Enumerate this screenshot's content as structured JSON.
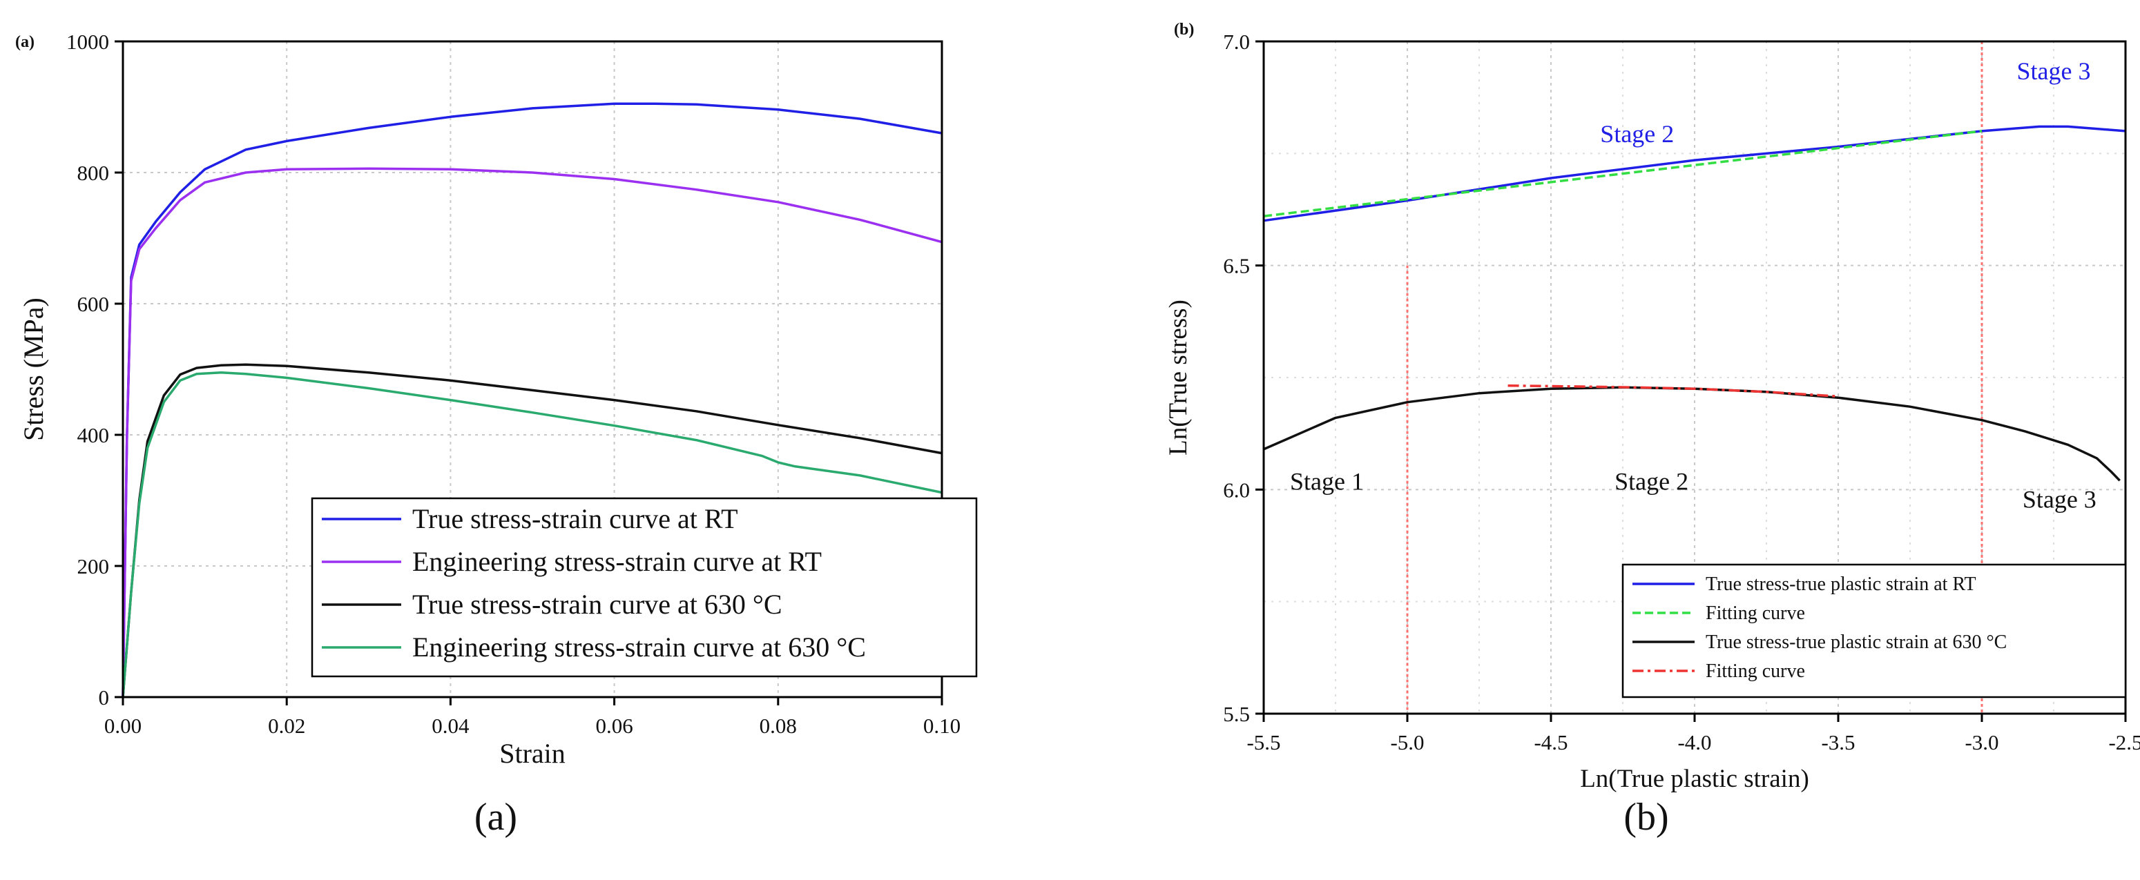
{
  "chart_data": [
    {
      "panel_id": "(a)",
      "caption": "(a)",
      "type": "line",
      "xlabel": "Strain",
      "ylabel": "Stress (MPa)",
      "xlim": [
        0,
        0.1
      ],
      "ylim": [
        0,
        1000
      ],
      "xticks": [
        "0.00",
        "0.02",
        "0.04",
        "0.06",
        "0.08",
        "0.10"
      ],
      "yticks": [
        "0",
        "200",
        "400",
        "600",
        "800",
        "1000"
      ],
      "xtick_values": [
        0,
        0.02,
        0.04,
        0.06,
        0.08,
        0.1
      ],
      "ytick_values": [
        0,
        200,
        400,
        600,
        800,
        1000
      ],
      "grid": true,
      "legend_position": "bottom-right",
      "series": [
        {
          "name": "True stress-strain curve at RT",
          "color": "#1f1fe6",
          "x": [
            0,
            0.0005,
            0.001,
            0.002,
            0.004,
            0.007,
            0.01,
            0.015,
            0.02,
            0.03,
            0.04,
            0.05,
            0.06,
            0.065,
            0.07,
            0.08,
            0.09,
            0.1
          ],
          "y": [
            0,
            400,
            640,
            690,
            725,
            770,
            805,
            835,
            848,
            868,
            885,
            898,
            905,
            905,
            904,
            896,
            882,
            860
          ]
        },
        {
          "name": "Engineering stress-strain curve at RT",
          "color": "#9b30f0",
          "x": [
            0,
            0.0005,
            0.001,
            0.002,
            0.004,
            0.007,
            0.01,
            0.015,
            0.02,
            0.03,
            0.04,
            0.05,
            0.06,
            0.07,
            0.08,
            0.09,
            0.1
          ],
          "y": [
            0,
            400,
            635,
            683,
            715,
            758,
            785,
            800,
            805,
            806,
            805,
            800,
            790,
            774,
            755,
            728,
            694
          ]
        },
        {
          "name": "True stress-strain curve at 630 °C",
          "color": "#111111",
          "x": [
            0,
            0.001,
            0.002,
            0.003,
            0.005,
            0.007,
            0.009,
            0.012,
            0.015,
            0.02,
            0.03,
            0.04,
            0.05,
            0.06,
            0.07,
            0.08,
            0.09,
            0.1
          ],
          "y": [
            0,
            160,
            300,
            390,
            460,
            492,
            502,
            506,
            507,
            505,
            495,
            483,
            468,
            453,
            436,
            415,
            395,
            372
          ]
        },
        {
          "name": "Engineering stress-strain curve at 630 °C",
          "color": "#2aaa6e",
          "x": [
            0,
            0.001,
            0.002,
            0.003,
            0.005,
            0.007,
            0.009,
            0.012,
            0.015,
            0.02,
            0.03,
            0.04,
            0.05,
            0.06,
            0.07,
            0.078,
            0.08,
            0.082,
            0.09,
            0.1
          ],
          "y": [
            0,
            160,
            295,
            380,
            450,
            483,
            493,
            495,
            493,
            487,
            471,
            453,
            434,
            414,
            392,
            368,
            358,
            352,
            338,
            312
          ]
        }
      ]
    },
    {
      "panel_id": "(b)",
      "caption": "(b)",
      "type": "line",
      "xlabel": "Ln(True plastic strain)",
      "ylabel": "Ln(True stress)",
      "xlim": [
        -5.5,
        -2.5
      ],
      "ylim": [
        5.5,
        7.0
      ],
      "xticks": [
        "-5.5",
        "-5.0",
        "-4.5",
        "-4.0",
        "-3.5",
        "-3.0",
        "-2.5"
      ],
      "yticks": [
        "5.5",
        "6.0",
        "6.5",
        "7.0"
      ],
      "xtick_values": [
        -5.5,
        -5.0,
        -4.5,
        -4.0,
        -3.5,
        -3.0,
        -2.5
      ],
      "ytick_values": [
        5.5,
        6.0,
        6.5,
        7.0
      ],
      "grid": true,
      "legend_position": "bottom-right",
      "annotations": [
        {
          "text": "Stage 2",
          "x": -4.2,
          "y": 6.775,
          "color": "#1f1fe6"
        },
        {
          "text": "Stage 3",
          "x": -2.75,
          "y": 6.915,
          "color": "#1f1fe6"
        },
        {
          "text": "Stage 1",
          "x": -5.28,
          "y": 6.0,
          "color": "#111111"
        },
        {
          "text": "Stage 2",
          "x": -4.15,
          "y": 6.0,
          "color": "#111111"
        },
        {
          "text": "Stage 3",
          "x": -2.73,
          "y": 5.96,
          "color": "#111111"
        }
      ],
      "stage_boundaries": [
        {
          "x": -5.0,
          "y_range": [
            5.5,
            6.5
          ]
        },
        {
          "x": -3.0,
          "y_range": [
            5.5,
            7.0
          ]
        }
      ],
      "series": [
        {
          "name": "True stress-true plastic strain at RT",
          "color": "#1f1fe6",
          "style": "solid",
          "x": [
            -5.5,
            -5.0,
            -4.5,
            -4.0,
            -3.5,
            -3.0,
            -2.9,
            -2.8,
            -2.7,
            -2.6,
            -2.5
          ],
          "y": [
            6.6,
            6.645,
            6.695,
            6.735,
            6.765,
            6.8,
            6.805,
            6.81,
            6.81,
            6.805,
            6.8
          ]
        },
        {
          "name": "Fitting curve",
          "color": "#33dd44",
          "style": "dashed",
          "x": [
            -5.5,
            -3.0
          ],
          "y": [
            6.61,
            6.8
          ]
        },
        {
          "name": "True stress-true plastic strain at 630 °C",
          "color": "#111111",
          "style": "solid",
          "x": [
            -5.5,
            -5.25,
            -5.0,
            -4.75,
            -4.5,
            -4.25,
            -4.0,
            -3.75,
            -3.5,
            -3.25,
            -3.0,
            -2.85,
            -2.7,
            -2.6,
            -2.55,
            -2.52
          ],
          "y": [
            6.09,
            6.16,
            6.195,
            6.215,
            6.225,
            6.228,
            6.225,
            6.218,
            6.205,
            6.185,
            6.155,
            6.13,
            6.1,
            6.07,
            6.04,
            6.02
          ]
        },
        {
          "name": "Fitting curve",
          "color": "#ee3333",
          "style": "dashdot",
          "x": [
            -4.65,
            -4.4,
            -4.2,
            -4.0,
            -3.75,
            -3.5
          ],
          "y": [
            6.232,
            6.23,
            6.228,
            6.225,
            6.218,
            6.208
          ]
        }
      ]
    }
  ]
}
